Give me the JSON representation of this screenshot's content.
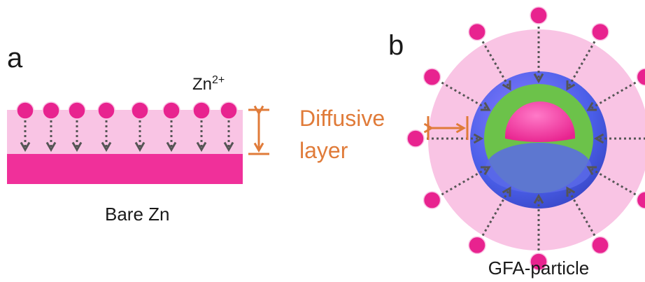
{
  "panels": {
    "a": {
      "label": "a",
      "ion": {
        "base": "Zn",
        "superscript": "2+"
      },
      "caption": "Bare Zn"
    },
    "b": {
      "label": "b",
      "caption": "GFA-particle"
    }
  },
  "annotation": {
    "lines": [
      "Diffusive",
      "layer"
    ]
  }
}
